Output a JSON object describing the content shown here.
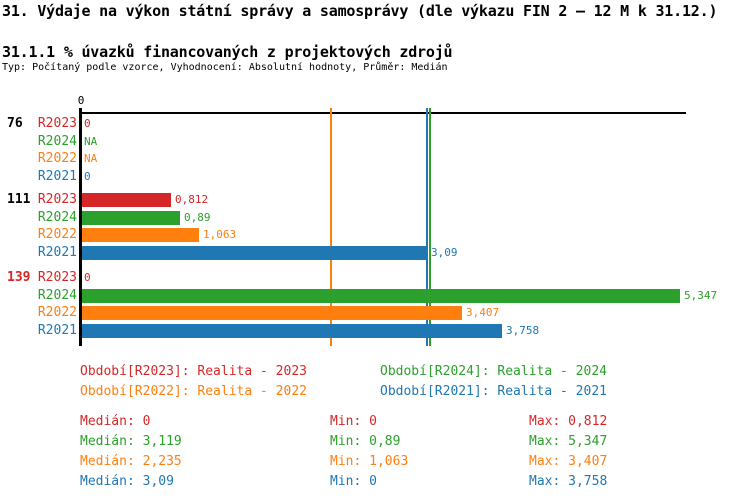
{
  "title": "31. Výdaje na výkon státní správy a samosprávy (dle výkazu FIN 2 – 12 M k 31.12.)",
  "subtitle": "31.1.1 % úvazků financovaných z projektových zdrojů",
  "meta_line": "Typ: Počítaný podle vzorce, Vyhodnocení: Absolutní hodnoty, Průměr: Medián",
  "colors": {
    "r2023": "#d62728",
    "r2024": "#2ca02c",
    "r2022": "#ff7f0e",
    "r2021": "#1f77b4",
    "axis": "#000000",
    "group_highlight": "#d62728"
  },
  "chart_data": {
    "type": "bar",
    "orientation": "horizontal",
    "x_axis": {
      "ticks": [
        {
          "label": "0",
          "value": 0
        }
      ],
      "range": [
        0,
        5.4
      ]
    },
    "series_order": [
      "R2023",
      "R2024",
      "R2022",
      "R2021"
    ],
    "groups": [
      {
        "label": "76",
        "label_color": "#000000",
        "rows": [
          {
            "series": "R2023",
            "value": 0,
            "display": "0",
            "color": "#d62728"
          },
          {
            "series": "R2024",
            "value": null,
            "display": "NA",
            "color": "#2ca02c"
          },
          {
            "series": "R2022",
            "value": null,
            "display": "NA",
            "color": "#ff7f0e"
          },
          {
            "series": "R2021",
            "value": 0,
            "display": "0",
            "color": "#1f77b4"
          }
        ]
      },
      {
        "label": "111",
        "label_color": "#000000",
        "rows": [
          {
            "series": "R2023",
            "value": 0.812,
            "display": "0,812",
            "color": "#d62728"
          },
          {
            "series": "R2024",
            "value": 0.89,
            "display": "0,89",
            "color": "#2ca02c"
          },
          {
            "series": "R2022",
            "value": 1.063,
            "display": "1,063",
            "color": "#ff7f0e"
          },
          {
            "series": "R2021",
            "value": 3.09,
            "display": "3,09",
            "color": "#1f77b4"
          }
        ]
      },
      {
        "label": "139",
        "label_color": "#d62728",
        "rows": [
          {
            "series": "R2023",
            "value": 0,
            "display": "0",
            "color": "#d62728"
          },
          {
            "series": "R2024",
            "value": 5.347,
            "display": "5,347",
            "color": "#2ca02c"
          },
          {
            "series": "R2022",
            "value": 3.407,
            "display": "3,407",
            "color": "#ff7f0e"
          },
          {
            "series": "R2021",
            "value": 3.758,
            "display": "3,758",
            "color": "#1f77b4"
          }
        ]
      }
    ],
    "median_lines": [
      {
        "series": "R2022",
        "value": 2.235,
        "color": "#ff7f0e"
      },
      {
        "series": "R2021",
        "value": 3.09,
        "color": "#1f77b4"
      },
      {
        "series": "R2024",
        "value": 3.119,
        "color": "#2ca02c"
      }
    ]
  },
  "legend": [
    {
      "label": "Období[R2023]: Realita - 2023",
      "color": "#d62728",
      "col": 0,
      "row": 0
    },
    {
      "label": "Období[R2024]: Realita - 2024",
      "color": "#2ca02c",
      "col": 1,
      "row": 0
    },
    {
      "label": "Období[R2022]: Realita - 2022",
      "color": "#ff7f0e",
      "col": 0,
      "row": 1
    },
    {
      "label": "Období[R2021]: Realita - 2021",
      "color": "#1f77b4",
      "col": 1,
      "row": 1
    }
  ],
  "stats": [
    {
      "series": "R2023",
      "color": "#d62728",
      "median": "Medián: 0",
      "min": "Min: 0",
      "max": "Max: 0,812"
    },
    {
      "series": "R2024",
      "color": "#2ca02c",
      "median": "Medián: 3,119",
      "min": "Min: 0,89",
      "max": "Max: 5,347"
    },
    {
      "series": "R2022",
      "color": "#ff7f0e",
      "median": "Medián: 2,235",
      "min": "Min: 1,063",
      "max": "Max: 3,407"
    },
    {
      "series": "R2021",
      "color": "#1f77b4",
      "median": "Medián: 3,09",
      "min": "Min: 0",
      "max": "Max: 3,758"
    }
  ]
}
